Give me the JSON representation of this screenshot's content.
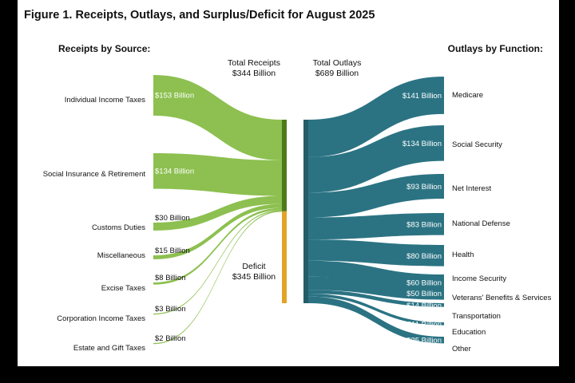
{
  "title": "Figure 1. Receipts, Outlays, and Surplus/Deficit for August 2025",
  "left_heading": "Receipts by Source:",
  "right_heading": "Outlays by Function:",
  "colors": {
    "receipts": "#8dc050",
    "receipts_bar": "#4f7a1c",
    "deficit": "#e2a426",
    "outlays": "#2b7383",
    "outlays_bar": "#235d69"
  },
  "chart_data": {
    "type": "sankey",
    "total_receipts": {
      "label": "Total Receipts",
      "value": "$344 Billion"
    },
    "total_outlays": {
      "label": "Total Outlays",
      "value": "$689 Billion"
    },
    "deficit": {
      "label": "Deficit",
      "value": "$345 Billion"
    },
    "receipts": [
      {
        "name": "Individual Income Taxes",
        "value": 153,
        "label": "$153 Billion"
      },
      {
        "name": "Social Insurance & Retirement",
        "value": 134,
        "label": "$134 Billion"
      },
      {
        "name": "Customs Duties",
        "value": 30,
        "label": "$30 Billion"
      },
      {
        "name": "Miscellaneous",
        "value": 15,
        "label": "$15 Billion"
      },
      {
        "name": "Excise Taxes",
        "value": 8,
        "label": "$8 Billion"
      },
      {
        "name": "Corporation Income Taxes",
        "value": 3,
        "label": "$3 Billion"
      },
      {
        "name": "Estate and Gift Taxes",
        "value": 2,
        "label": "$2 Billion"
      }
    ],
    "outlays": [
      {
        "name": "Medicare",
        "value": 141,
        "label": "$141 Billion"
      },
      {
        "name": "Social Security",
        "value": 134,
        "label": "$134 Billion"
      },
      {
        "name": "Net Interest",
        "value": 93,
        "label": "$93 Billion"
      },
      {
        "name": "National Defense",
        "value": 83,
        "label": "$83 Billion"
      },
      {
        "name": "Health",
        "value": 80,
        "label": "$80 Billion"
      },
      {
        "name": "Income Security",
        "value": 60,
        "label": "$60 Billion"
      },
      {
        "name": "Veterans' Benefits & Services",
        "value": 50,
        "label": "$50 Billion"
      },
      {
        "name": "Transportation",
        "value": 14,
        "label": "$14 Billion"
      },
      {
        "name": "Education",
        "value": 11,
        "label": "$11 Billion"
      },
      {
        "name": "Other",
        "value": 25,
        "label": "$25 Billion"
      }
    ]
  }
}
